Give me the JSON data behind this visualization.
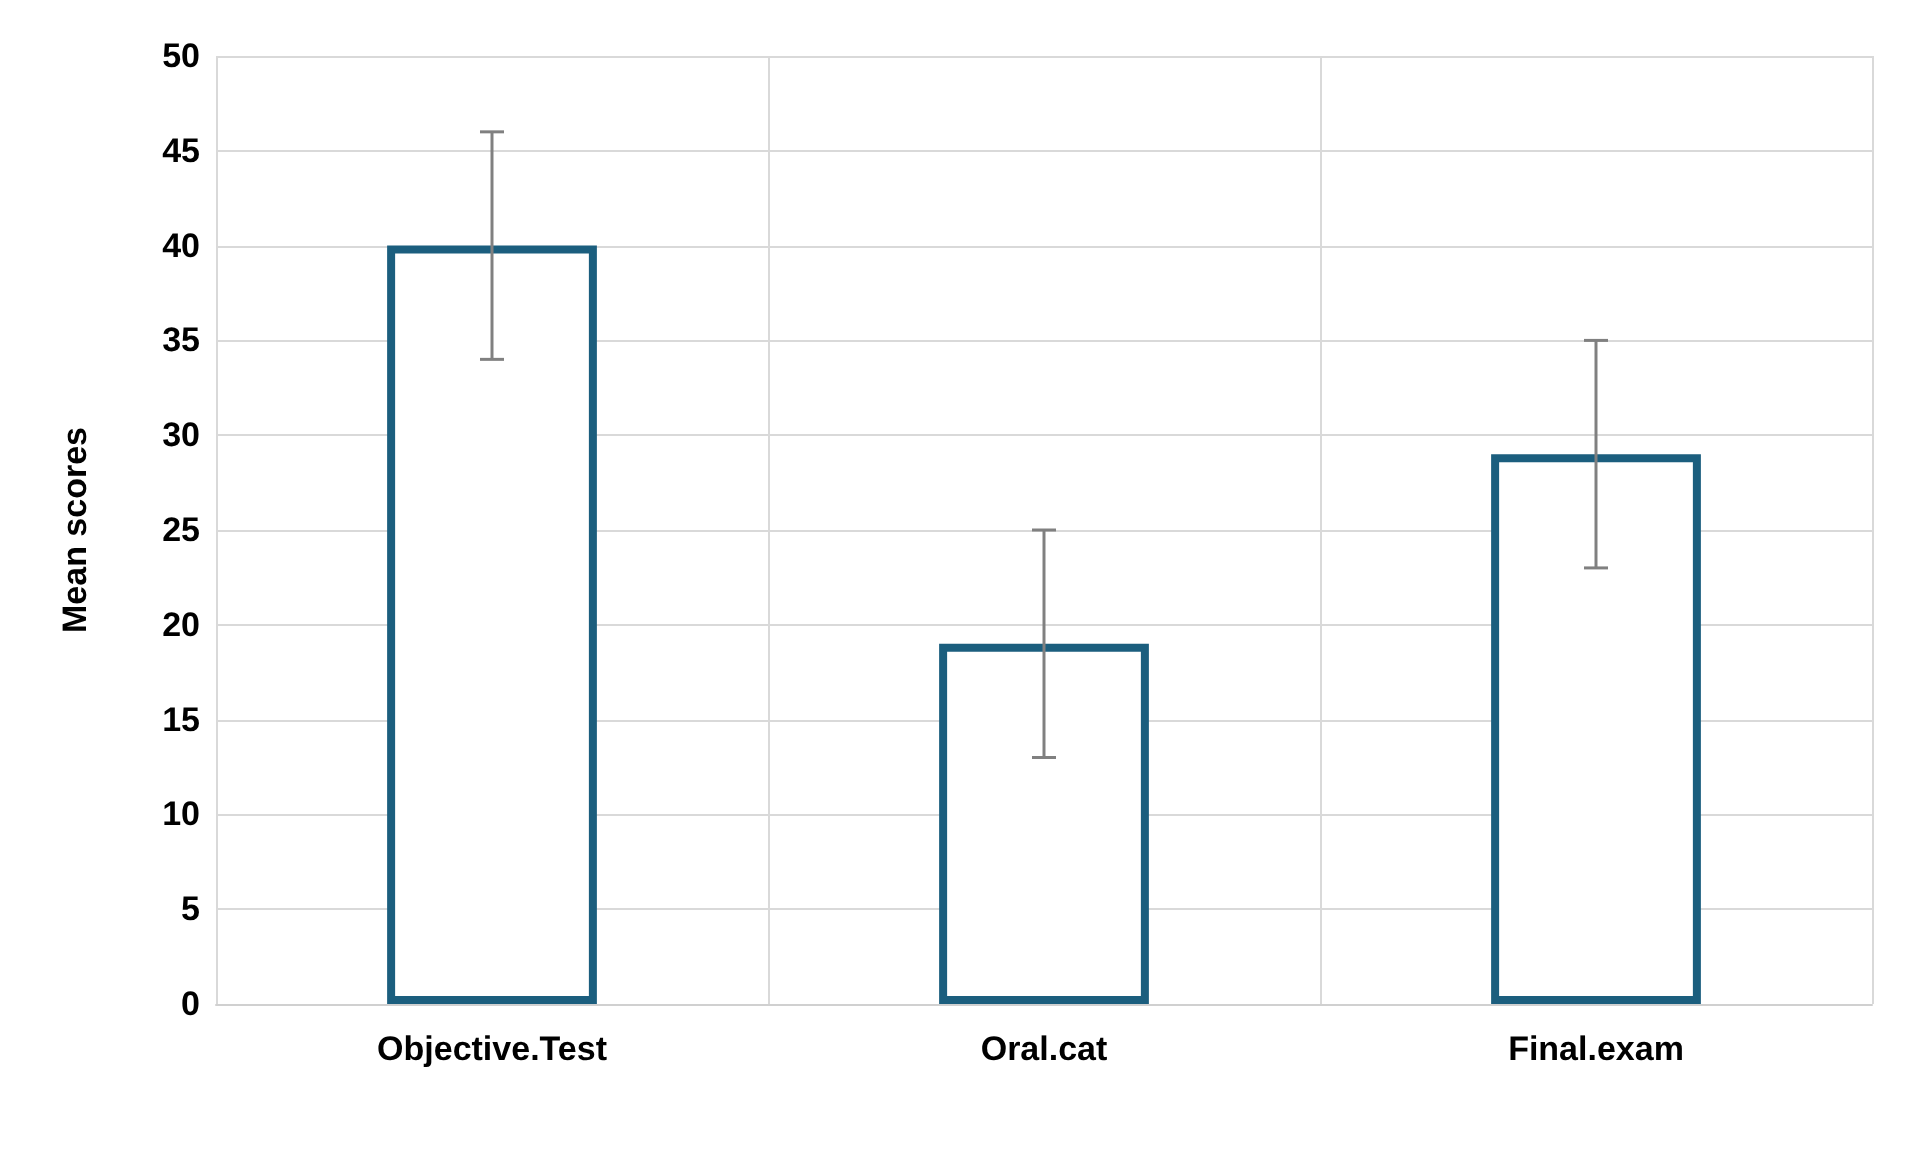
{
  "chart_data": {
    "type": "bar",
    "ylabel": "Mean scores",
    "categories": [
      "Objective.Test",
      "Oral.cat",
      "Final.exam"
    ],
    "values": [
      40,
      19,
      29
    ],
    "errors": [
      6,
      6,
      6
    ],
    "color": "#1b5e7e",
    "ylim": [
      0,
      50
    ],
    "yticks": [
      0,
      5,
      10,
      15,
      20,
      25,
      30,
      35,
      40,
      45,
      50
    ],
    "grid": true
  }
}
